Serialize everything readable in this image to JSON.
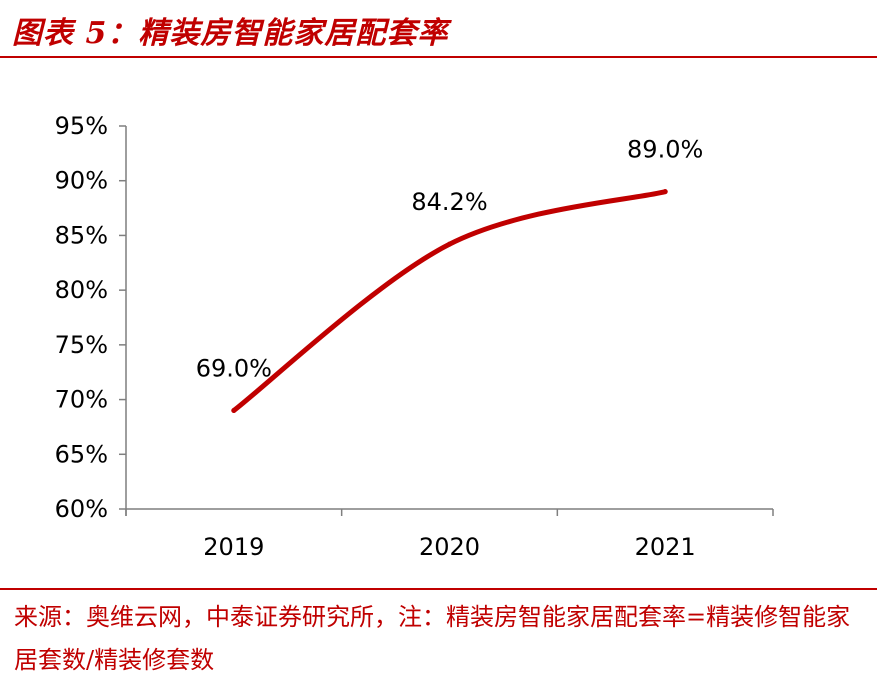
{
  "figure": {
    "title": "图表 5：精装房智能家居配套率",
    "source": "来源：奥维云网，中泰证券研究所，注：精装房智能家居配套率=精装修智能家居套数/精装修套数"
  },
  "colors": {
    "accent": "#c00000",
    "axis": "#7f7f7f",
    "text": "#000000"
  },
  "chart_data": {
    "type": "line",
    "title": "",
    "xlabel": "",
    "ylabel": "",
    "categories": [
      "2019",
      "2020",
      "2021"
    ],
    "series": [
      {
        "name": "精装房智能家居配套率",
        "values": [
          69.0,
          84.2,
          89.0
        ]
      }
    ],
    "data_labels": [
      "69.0%",
      "84.2%",
      "89.0%"
    ],
    "ylim": [
      60,
      95
    ],
    "yticks": [
      60,
      65,
      70,
      75,
      80,
      85,
      90,
      95
    ],
    "ytick_labels": [
      "60%",
      "65%",
      "70%",
      "75%",
      "80%",
      "85%",
      "90%",
      "95%"
    ],
    "grid": false,
    "legend": "none",
    "line_style": "smooth"
  }
}
